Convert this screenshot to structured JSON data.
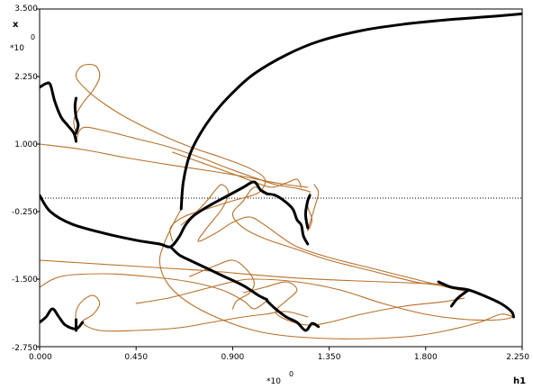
{
  "chart_data": {
    "type": "line",
    "title": "",
    "xlabel": "h1",
    "ylabel": "x",
    "x_scale_text": "*10",
    "x_scale_exp": "0",
    "y_scale_text": "*10",
    "y_scale_exp": "0",
    "xlim": [
      0.0,
      2.25
    ],
    "ylim": [
      -2.75,
      3.5
    ],
    "x_ticks": [
      "0.000",
      "0.450",
      "0.900",
      "1.350",
      "1.800",
      "2.250"
    ],
    "y_ticks": [
      "3.500",
      "2.250",
      "1.000",
      "-0.250",
      "-1.500",
      "-2.750"
    ],
    "x_tick_values": [
      0.0,
      0.45,
      0.9,
      1.35,
      1.8,
      2.25
    ],
    "y_tick_values": [
      3.5,
      2.25,
      1.0,
      -0.25,
      -1.5,
      -2.75
    ],
    "reference_line_y": 0.0,
    "grid": false,
    "colors": {
      "stable_branch": "#000000",
      "periodic_branch": "#b8702a",
      "reference_line": "#000000",
      "frame": "#000000"
    },
    "series": [
      {
        "kind": "stable",
        "points": [
          [
            0.0,
            2.05
          ],
          [
            0.03,
            2.12
          ],
          [
            0.05,
            2.1
          ],
          [
            0.07,
            1.8
          ],
          [
            0.1,
            1.5
          ],
          [
            0.13,
            1.35
          ],
          [
            0.16,
            1.2
          ],
          [
            0.17,
            1.05
          ]
        ]
      },
      {
        "kind": "stable",
        "points": [
          [
            0.17,
            1.85
          ],
          [
            0.165,
            1.7
          ],
          [
            0.17,
            1.5
          ],
          [
            0.18,
            1.35
          ],
          [
            0.17,
            1.2
          ]
        ]
      },
      {
        "kind": "stable",
        "points": [
          [
            0.0,
            0.05
          ],
          [
            0.05,
            -0.25
          ],
          [
            0.15,
            -0.48
          ],
          [
            0.3,
            -0.65
          ],
          [
            0.45,
            -0.78
          ],
          [
            0.56,
            -0.85
          ],
          [
            0.61,
            -0.9
          ],
          [
            0.65,
            -0.72
          ],
          [
            0.68,
            -0.5
          ],
          [
            0.72,
            -0.32
          ],
          [
            0.8,
            -0.12
          ],
          [
            0.88,
            0.05
          ],
          [
            0.95,
            0.2
          ],
          [
            1.0,
            0.3
          ],
          [
            1.03,
            0.15
          ],
          [
            1.06,
            0.08
          ]
        ]
      },
      {
        "kind": "stable",
        "points": [
          [
            0.61,
            -0.9
          ],
          [
            0.65,
            -1.05
          ],
          [
            0.7,
            -1.15
          ],
          [
            0.78,
            -1.3
          ],
          [
            0.86,
            -1.45
          ],
          [
            0.95,
            -1.62
          ],
          [
            1.02,
            -1.8
          ],
          [
            1.06,
            -1.88
          ]
        ]
      },
      {
        "kind": "stable",
        "points": [
          [
            1.06,
            0.08
          ],
          [
            1.1,
            0.05
          ],
          [
            1.14,
            -0.05
          ],
          [
            1.18,
            -0.2
          ],
          [
            1.2,
            -0.4
          ],
          [
            1.22,
            -0.5
          ],
          [
            1.23,
            -0.7
          ],
          [
            1.25,
            -0.85
          ]
        ]
      },
      {
        "kind": "stable",
        "points": [
          [
            1.25,
            -0.55
          ],
          [
            1.24,
            -0.3
          ],
          [
            1.25,
            -0.05
          ],
          [
            1.26,
            0.05
          ]
        ]
      },
      {
        "kind": "stable",
        "points": [
          [
            0.0,
            -2.3
          ],
          [
            0.03,
            -2.2
          ],
          [
            0.06,
            -2.05
          ],
          [
            0.09,
            -2.2
          ],
          [
            0.12,
            -2.35
          ],
          [
            0.17,
            -2.42
          ],
          [
            0.2,
            -2.3
          ]
        ]
      },
      {
        "kind": "stable",
        "points": [
          [
            0.17,
            -2.45
          ],
          [
            0.17,
            -2.25
          ]
        ]
      },
      {
        "kind": "stable",
        "points": [
          [
            1.06,
            -1.9
          ],
          [
            1.1,
            -2.05
          ],
          [
            1.15,
            -2.2
          ],
          [
            1.2,
            -2.3
          ],
          [
            1.24,
            -2.45
          ],
          [
            1.27,
            -2.32
          ],
          [
            1.3,
            -2.38
          ]
        ]
      },
      {
        "kind": "stable",
        "points": [
          [
            0.66,
            -0.2
          ],
          [
            0.67,
            0.3
          ],
          [
            0.7,
            0.8
          ],
          [
            0.75,
            1.2
          ],
          [
            0.82,
            1.6
          ],
          [
            0.9,
            1.95
          ],
          [
            1.0,
            2.3
          ],
          [
            1.15,
            2.65
          ],
          [
            1.3,
            2.9
          ],
          [
            1.5,
            3.1
          ],
          [
            1.7,
            3.22
          ],
          [
            1.9,
            3.3
          ],
          [
            2.1,
            3.36
          ],
          [
            2.25,
            3.41
          ]
        ]
      },
      {
        "kind": "stable",
        "points": [
          [
            1.86,
            -1.55
          ],
          [
            1.92,
            -1.65
          ],
          [
            2.0,
            -1.7
          ],
          [
            2.08,
            -1.82
          ],
          [
            2.15,
            -1.95
          ],
          [
            2.2,
            -2.1
          ],
          [
            2.21,
            -2.2
          ]
        ]
      },
      {
        "kind": "stable",
        "points": [
          [
            2.0,
            -1.7
          ],
          [
            1.95,
            -1.85
          ],
          [
            1.92,
            -2.0
          ]
        ]
      },
      {
        "kind": "periodic",
        "points": [
          [
            0.17,
            1.2
          ],
          [
            0.16,
            1.45
          ],
          [
            0.2,
            1.75
          ],
          [
            0.25,
            2.0
          ],
          [
            0.28,
            2.25
          ],
          [
            0.26,
            2.45
          ],
          [
            0.2,
            2.45
          ],
          [
            0.17,
            2.25
          ],
          [
            0.22,
            2.0
          ],
          [
            0.3,
            1.75
          ],
          [
            0.4,
            1.5
          ],
          [
            0.55,
            1.2
          ],
          [
            0.7,
            0.95
          ],
          [
            0.85,
            0.75
          ],
          [
            0.98,
            0.55
          ],
          [
            1.05,
            0.35
          ],
          [
            1.02,
            0.1
          ],
          [
            0.9,
            -0.05
          ],
          [
            0.78,
            -0.2
          ],
          [
            0.67,
            -0.35
          ],
          [
            0.61,
            -0.55
          ],
          [
            0.62,
            -0.8
          ]
        ]
      },
      {
        "kind": "periodic",
        "points": [
          [
            0.17,
            1.05
          ],
          [
            0.2,
            1.3
          ],
          [
            0.3,
            1.25
          ],
          [
            0.45,
            1.1
          ],
          [
            0.6,
            0.95
          ],
          [
            0.75,
            0.75
          ],
          [
            0.88,
            0.55
          ],
          [
            1.0,
            0.38
          ],
          [
            1.1,
            0.25
          ],
          [
            1.2,
            0.18
          ],
          [
            1.26,
            0.12
          ]
        ]
      },
      {
        "kind": "periodic",
        "points": [
          [
            0.0,
            1.0
          ],
          [
            0.2,
            0.9
          ],
          [
            0.4,
            0.75
          ],
          [
            0.6,
            0.62
          ],
          [
            0.8,
            0.5
          ],
          [
            0.95,
            0.4
          ],
          [
            1.05,
            0.32
          ],
          [
            1.15,
            0.25
          ],
          [
            1.25,
            0.2
          ]
        ]
      },
      {
        "kind": "periodic",
        "points": [
          [
            0.66,
            -0.5
          ],
          [
            0.72,
            -0.3
          ],
          [
            0.78,
            -0.05
          ],
          [
            0.82,
            0.15
          ],
          [
            0.85,
            0.25
          ],
          [
            0.88,
            0.1
          ],
          [
            0.85,
            -0.2
          ],
          [
            0.78,
            -0.55
          ],
          [
            0.74,
            -0.8
          ],
          [
            0.82,
            -0.65
          ],
          [
            0.9,
            -0.45
          ],
          [
            0.98,
            -0.35
          ],
          [
            1.05,
            -0.5
          ],
          [
            1.12,
            -0.7
          ],
          [
            1.2,
            -0.9
          ],
          [
            1.35,
            -1.1
          ],
          [
            1.55,
            -1.3
          ],
          [
            1.75,
            -1.5
          ],
          [
            1.9,
            -1.65
          ],
          [
            1.98,
            -1.72
          ]
        ]
      },
      {
        "kind": "periodic",
        "points": [
          [
            1.06,
            0.1
          ],
          [
            1.0,
            0.2
          ],
          [
            0.95,
            -0.05
          ],
          [
            0.9,
            -0.3
          ],
          [
            0.95,
            -0.55
          ],
          [
            1.05,
            -0.75
          ],
          [
            1.2,
            -0.95
          ],
          [
            1.35,
            -1.15
          ],
          [
            1.55,
            -1.35
          ],
          [
            1.75,
            -1.55
          ],
          [
            1.88,
            -1.62
          ]
        ]
      },
      {
        "kind": "periodic",
        "points": [
          [
            0.0,
            -1.15
          ],
          [
            0.2,
            -1.2
          ],
          [
            0.4,
            -1.25
          ],
          [
            0.6,
            -1.3
          ],
          [
            0.8,
            -1.35
          ],
          [
            1.0,
            -1.42
          ],
          [
            1.2,
            -1.48
          ],
          [
            1.4,
            -1.52
          ],
          [
            1.6,
            -1.55
          ],
          [
            1.8,
            -1.58
          ],
          [
            1.9,
            -1.6
          ]
        ]
      },
      {
        "kind": "periodic",
        "points": [
          [
            0.0,
            -1.65
          ],
          [
            0.1,
            -1.45
          ],
          [
            0.3,
            -1.4
          ],
          [
            0.5,
            -1.45
          ],
          [
            0.7,
            -1.55
          ],
          [
            0.85,
            -1.7
          ],
          [
            0.95,
            -1.9
          ],
          [
            1.0,
            -2.05
          ],
          [
            1.06,
            -1.9
          ]
        ]
      },
      {
        "kind": "periodic",
        "points": [
          [
            0.17,
            -2.4
          ],
          [
            0.17,
            -2.1
          ],
          [
            0.2,
            -1.9
          ],
          [
            0.25,
            -1.8
          ],
          [
            0.28,
            -1.95
          ],
          [
            0.25,
            -2.15
          ],
          [
            0.2,
            -2.3
          ],
          [
            0.28,
            -2.45
          ],
          [
            0.45,
            -2.45
          ],
          [
            0.65,
            -2.4
          ],
          [
            0.8,
            -2.3
          ],
          [
            0.95,
            -2.2
          ],
          [
            1.05,
            -2.15
          ],
          [
            1.15,
            -2.1
          ],
          [
            1.25,
            -2.2
          ]
        ]
      },
      {
        "kind": "periodic",
        "points": [
          [
            0.95,
            -1.75
          ],
          [
            1.05,
            -1.65
          ],
          [
            1.15,
            -1.55
          ],
          [
            1.2,
            -1.7
          ],
          [
            1.15,
            -1.9
          ],
          [
            1.1,
            -2.1
          ],
          [
            1.15,
            -2.25
          ],
          [
            1.25,
            -2.35
          ],
          [
            1.35,
            -2.3
          ],
          [
            1.5,
            -2.15
          ],
          [
            1.7,
            -2.0
          ],
          [
            1.88,
            -1.92
          ],
          [
            1.98,
            -1.85
          ]
        ]
      },
      {
        "kind": "periodic",
        "points": [
          [
            0.7,
            -1.45
          ],
          [
            0.82,
            -1.25
          ],
          [
            0.9,
            -1.15
          ],
          [
            0.96,
            -1.3
          ],
          [
            1.0,
            -1.55
          ],
          [
            0.98,
            -1.75
          ],
          [
            0.92,
            -1.9
          ],
          [
            0.9,
            -2.05
          ]
        ]
      },
      {
        "kind": "periodic",
        "points": [
          [
            0.45,
            -1.95
          ],
          [
            0.6,
            -1.85
          ],
          [
            0.75,
            -1.7
          ],
          [
            0.9,
            -1.55
          ],
          [
            1.0,
            -1.5
          ],
          [
            1.2,
            -1.55
          ],
          [
            1.4,
            -1.7
          ],
          [
            1.6,
            -1.95
          ],
          [
            1.8,
            -2.15
          ],
          [
            2.0,
            -2.25
          ],
          [
            2.15,
            -2.25
          ],
          [
            2.21,
            -2.2
          ]
        ]
      },
      {
        "kind": "periodic",
        "points": [
          [
            0.66,
            -0.2
          ],
          [
            0.62,
            -0.5
          ],
          [
            0.58,
            -0.85
          ],
          [
            0.56,
            -1.2
          ],
          [
            0.6,
            -1.6
          ],
          [
            0.7,
            -1.95
          ],
          [
            0.85,
            -2.25
          ],
          [
            1.0,
            -2.45
          ],
          [
            1.15,
            -2.55
          ],
          [
            1.35,
            -2.6
          ],
          [
            1.55,
            -2.6
          ],
          [
            1.75,
            -2.55
          ],
          [
            1.9,
            -2.45
          ],
          [
            2.05,
            -2.3
          ],
          [
            2.15,
            -2.15
          ],
          [
            2.21,
            -2.2
          ]
        ]
      },
      {
        "kind": "periodic",
        "points": [
          [
            1.26,
            0.1
          ],
          [
            1.25,
            -0.15
          ],
          [
            1.27,
            -0.4
          ],
          [
            1.25,
            -0.6
          ],
          [
            1.28,
            -0.2
          ],
          [
            1.3,
            0.1
          ],
          [
            1.28,
            0.25
          ]
        ]
      },
      {
        "kind": "periodic",
        "points": [
          [
            0.62,
            0.85
          ],
          [
            0.78,
            0.62
          ],
          [
            0.9,
            0.45
          ],
          [
            1.0,
            0.3
          ],
          [
            1.08,
            0.2
          ],
          [
            1.15,
            0.28
          ],
          [
            1.2,
            0.35
          ],
          [
            1.22,
            0.2
          ]
        ]
      }
    ]
  }
}
